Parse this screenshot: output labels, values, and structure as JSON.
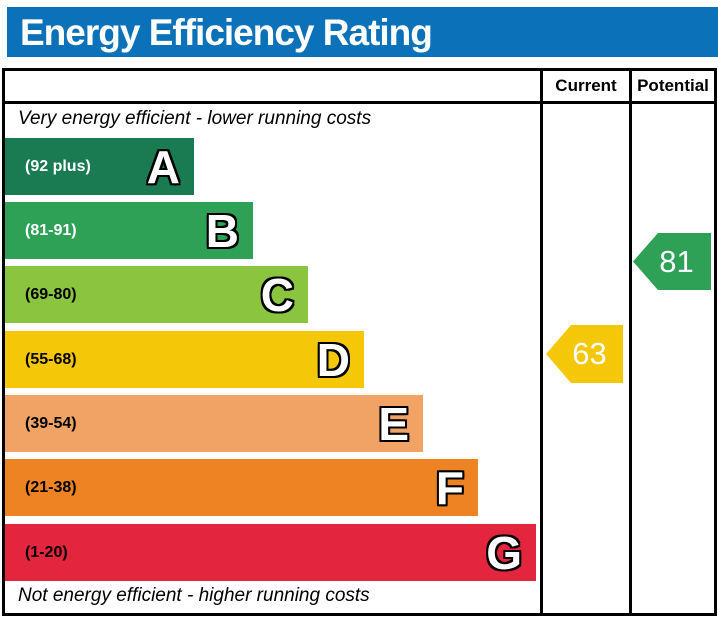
{
  "title": "Energy Efficiency Rating",
  "colors": {
    "header_blue": "#0b72b9",
    "border_black": "#000000",
    "current_arrow": "#f5c709",
    "potential_arrow": "#2ea157"
  },
  "table": {
    "columns": {
      "current": "Current",
      "potential": "Potential"
    },
    "top_note": "Very energy efficient - lower running costs",
    "bottom_note": "Not energy efficient - higher running costs"
  },
  "chart_data": {
    "type": "bar",
    "title": "Energy Efficiency Rating",
    "orientation": "horizontal",
    "top_note": "Very energy efficient - lower running costs",
    "bottom_note": "Not energy efficient - higher running costs",
    "bands": [
      {
        "letter": "A",
        "range_label": "(92 plus)",
        "score_min": 92,
        "score_max": 100,
        "color": "#1a7a52",
        "label_color": "#ffffff"
      },
      {
        "letter": "B",
        "range_label": "(81-91)",
        "score_min": 81,
        "score_max": 91,
        "color": "#2ea157",
        "label_color": "#ffffff"
      },
      {
        "letter": "C",
        "range_label": "(69-80)",
        "score_min": 69,
        "score_max": 80,
        "color": "#8bc53f",
        "label_color": "#000000"
      },
      {
        "letter": "D",
        "range_label": "(55-68)",
        "score_min": 55,
        "score_max": 68,
        "color": "#f5c709",
        "label_color": "#000000"
      },
      {
        "letter": "E",
        "range_label": "(39-54)",
        "score_min": 39,
        "score_max": 54,
        "color": "#f0a365",
        "label_color": "#000000"
      },
      {
        "letter": "F",
        "range_label": "(21-38)",
        "score_min": 21,
        "score_max": 38,
        "color": "#ee8323",
        "label_color": "#000000"
      },
      {
        "letter": "G",
        "range_label": "(1-20)",
        "score_min": 1,
        "score_max": 20,
        "color": "#e3253e",
        "label_color": "#000000"
      }
    ],
    "current": {
      "value": 63,
      "band": "D",
      "color": "#f5c709"
    },
    "potential": {
      "value": 81,
      "band": "B",
      "color": "#2ea157"
    }
  }
}
